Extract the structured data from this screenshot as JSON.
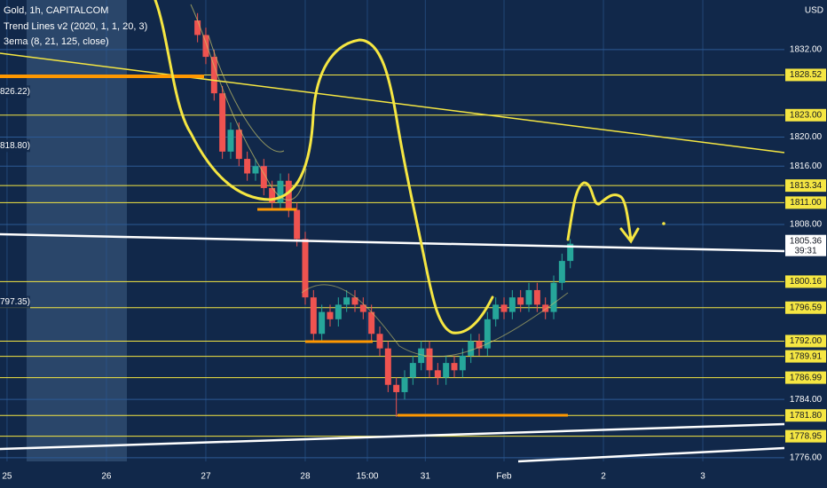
{
  "chart_data": {
    "type": "candlestick",
    "title": "Gold, 1h, CAPITALCOM",
    "indicators": [
      "Trend Lines v2 (2020, 1, 1, 20, 3)",
      "3ema (8, 21, 125, close)"
    ],
    "currency": "USD",
    "up_color": "#26a69a",
    "down_color": "#ef5350",
    "level_color": "#f5e642",
    "grid_color": "#2c5a94",
    "xlim": [
      -1.7,
      187.7
    ],
    "xticks": [
      {
        "value": 0,
        "label": "25"
      },
      {
        "value": 24,
        "label": "26"
      },
      {
        "value": 48,
        "label": "27"
      },
      {
        "value": 72,
        "label": "28"
      },
      {
        "value": 87,
        "label": "15:00"
      },
      {
        "value": 101,
        "label": "31"
      },
      {
        "value": 120,
        "label": "Feb"
      },
      {
        "value": 144,
        "label": "2"
      },
      {
        "value": 168,
        "label": "3"
      }
    ],
    "ylim": [
      1775.5,
      1838.8
    ],
    "yticks": [
      {
        "value": 1776,
        "label": "1776.00"
      },
      {
        "value": 1784,
        "label": "1784.00"
      },
      {
        "value": 1808,
        "label": "1808.00"
      },
      {
        "value": 1816,
        "label": "1816.00"
      },
      {
        "value": 1820,
        "label": "1820.00"
      },
      {
        "value": 1832,
        "label": "1832.00"
      }
    ],
    "levels": [
      {
        "value": 1828.52,
        "label": "1828.52"
      },
      {
        "value": 1823,
        "label": "1823.00"
      },
      {
        "value": 1813.34,
        "label": "1813.34"
      },
      {
        "value": 1811,
        "label": "1811.00"
      },
      {
        "value": 1800.16,
        "label": "1800.16"
      },
      {
        "value": 1796.59,
        "label": "1796.59"
      },
      {
        "value": 1792,
        "label": "1792.00"
      },
      {
        "value": 1789.91,
        "label": "1789.91"
      },
      {
        "value": 1786.99,
        "label": "1786.99"
      },
      {
        "value": 1781.8,
        "label": "1781.80"
      },
      {
        "value": 1778.95,
        "label": "1778.95"
      }
    ],
    "left_labels": [
      {
        "value": 1826.22,
        "label": "826.22)"
      },
      {
        "value": 1818.8,
        "label": "818.80)"
      },
      {
        "value": 1797.35,
        "label": "797.35)"
      }
    ],
    "last_price": {
      "value": 1805.36,
      "label": "1805.36",
      "countdown": "39:31"
    },
    "x": [
      46,
      48,
      50,
      52,
      54,
      56,
      58,
      60,
      62,
      64,
      66,
      68,
      70,
      72,
      74,
      76,
      78,
      80,
      82,
      84,
      86,
      88,
      90,
      92,
      94,
      96,
      98,
      100,
      102,
      104,
      106,
      108,
      110,
      112,
      114,
      116,
      118,
      120,
      122,
      124,
      126,
      128,
      130,
      132,
      134,
      136
    ],
    "open": [
      1836,
      1834,
      1831,
      1826,
      1818,
      1821,
      1817,
      1815,
      1816,
      1813,
      1811,
      1814,
      1810,
      1806,
      1798,
      1793,
      1796,
      1795,
      1797,
      1798,
      1797,
      1796,
      1793,
      1791,
      1786,
      1785,
      1787,
      1789,
      1791,
      1788,
      1787,
      1789,
      1788,
      1790,
      1792,
      1791,
      1795,
      1797,
      1796,
      1798,
      1797,
      1799,
      1797,
      1796,
      1800,
      1803
    ],
    "high": [
      1837,
      1835,
      1832,
      1827,
      1822,
      1822,
      1818,
      1817,
      1817,
      1814,
      1815,
      1815,
      1811,
      1807,
      1799,
      1797,
      1797,
      1798,
      1799,
      1799,
      1798,
      1797,
      1794,
      1792,
      1787,
      1788,
      1790,
      1792,
      1792,
      1789,
      1790,
      1790,
      1791,
      1793,
      1793,
      1796,
      1798,
      1798,
      1799,
      1799,
      1800,
      1800,
      1798,
      1801,
      1804,
      1806
    ],
    "low": [
      1833,
      1830,
      1825,
      1817,
      1817,
      1816,
      1814,
      1814,
      1812,
      1810,
      1810,
      1809,
      1805,
      1797,
      1791.8,
      1792,
      1794,
      1794,
      1796,
      1796,
      1795,
      1792,
      1790,
      1785,
      1781.6,
      1784,
      1786,
      1788,
      1787,
      1786,
      1786,
      1787,
      1787,
      1789,
      1790,
      1790,
      1794,
      1795,
      1795,
      1796,
      1796,
      1796,
      1795,
      1795,
      1799,
      1802
    ],
    "close": [
      1834,
      1831,
      1826,
      1818,
      1821,
      1817,
      1815,
      1816,
      1813,
      1811,
      1814,
      1810,
      1806,
      1798,
      1793,
      1796,
      1795,
      1797,
      1798,
      1797,
      1796,
      1793,
      1791,
      1786,
      1785,
      1787,
      1789,
      1791,
      1788,
      1787,
      1789,
      1788,
      1790,
      1792,
      1791,
      1795,
      1797,
      1796,
      1798,
      1797,
      1799,
      1797,
      1796,
      1800,
      1803,
      1805.36
    ]
  }
}
